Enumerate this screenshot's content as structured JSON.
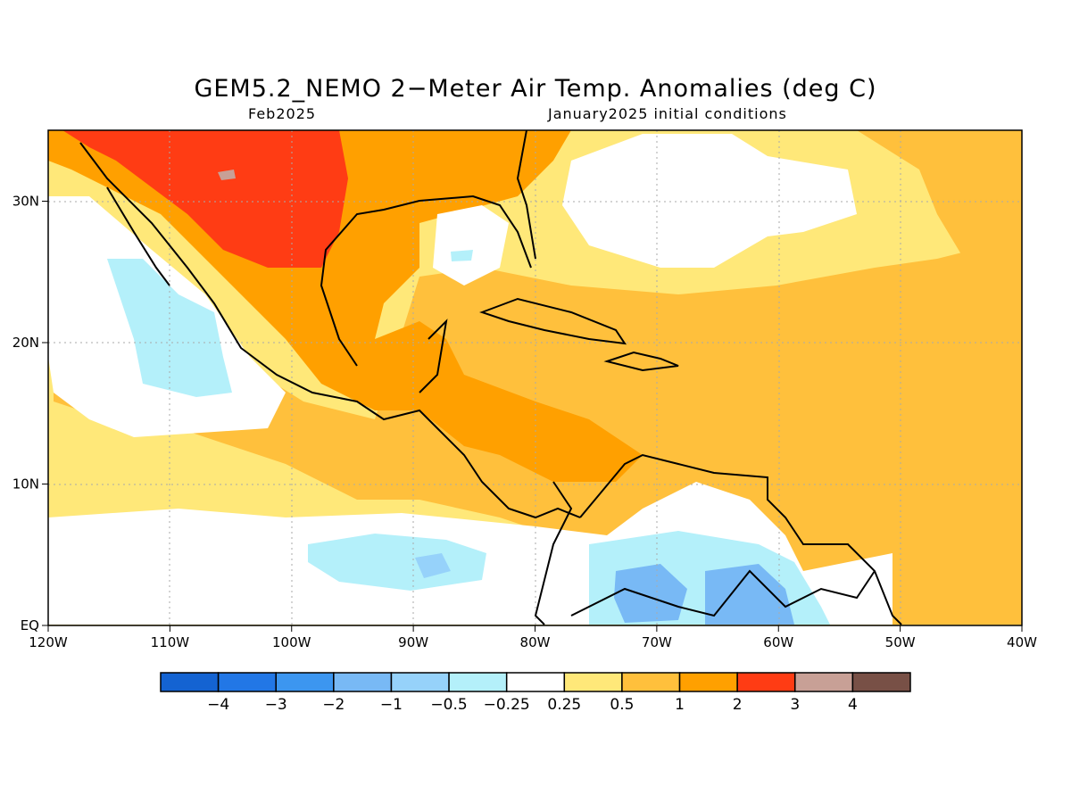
{
  "title": "GEM5.2_NEMO 2−Meter Air Temp. Anomalies (deg C)",
  "subtitle_left": "Feb2025",
  "subtitle_right": "January2025 initial conditions",
  "lon_ticks": [
    "120W",
    "110W",
    "100W",
    "90W",
    "80W",
    "70W",
    "60W",
    "50W",
    "40W"
  ],
  "lat_ticks": [
    "EQ",
    "10N",
    "20N",
    "30N"
  ],
  "colorbar": {
    "colors": [
      "#1463d2",
      "#2277e6",
      "#3c96f0",
      "#78b9f5",
      "#96d2fa",
      "#b4f0fa",
      "#ffffff",
      "#ffe879",
      "#ffc03c",
      "#ffa000",
      "#ff3c14",
      "#c8a096",
      "#785046"
    ],
    "labels": [
      "−4",
      "−3",
      "−2",
      "−1",
      "−0.5",
      "−0.25",
      "0.25",
      "0.5",
      "1",
      "2",
      "3",
      "4"
    ]
  },
  "colors": {
    "very_warm": "#ff3c14",
    "warm": "#ffa000",
    "mild": "#ffc03c",
    "slight": "#ffe879",
    "neutral": "#ffffff",
    "slight_cool": "#b4f0fa",
    "cool": "#78b9f5",
    "gray": "#c8a096"
  }
}
